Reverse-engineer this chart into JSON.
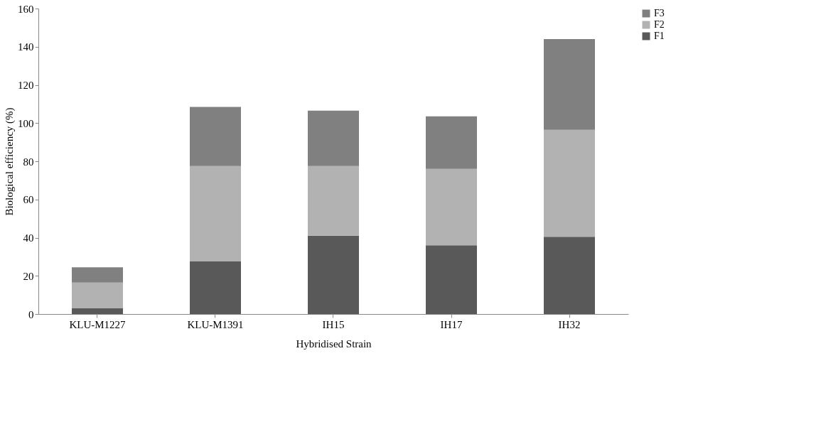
{
  "chart_data": {
    "type": "bar",
    "stacked": true,
    "xlabel": "Hybridised Strain",
    "ylabel": "Biological efficiency (%)",
    "categories": [
      "KLU-M1227",
      "KLU-M1391",
      "IH15",
      "IH17",
      "IH32"
    ],
    "series": [
      {
        "name": "F1",
        "color": "#595959",
        "values": [
          3,
          27.5,
          41,
          36,
          40.5
        ]
      },
      {
        "name": "F2",
        "color": "#b2b2b2",
        "values": [
          13.5,
          50,
          36.5,
          40,
          56
        ]
      },
      {
        "name": "F3",
        "color": "#808080",
        "values": [
          8,
          31,
          29,
          27.5,
          47.5
        ]
      }
    ],
    "ylim": [
      0,
      160
    ],
    "yticks": [
      0,
      20,
      40,
      60,
      80,
      100,
      120,
      140,
      160
    ],
    "grid": false,
    "legend": "right"
  }
}
